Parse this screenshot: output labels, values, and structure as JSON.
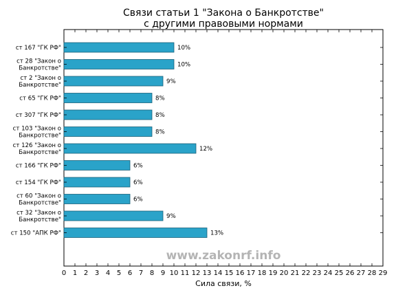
{
  "chart_data": {
    "type": "bar",
    "orientation": "horizontal",
    "title": [
      "Связи статьи 1 \"Закона о Банкротстве\"",
      "с другими правовыми нормами"
    ],
    "xlabel": "Сила связи, %",
    "ylabel": "",
    "xlim": [
      0,
      29
    ],
    "x_ticks": [
      0,
      1,
      2,
      3,
      4,
      5,
      6,
      7,
      8,
      9,
      10,
      11,
      12,
      13,
      14,
      15,
      16,
      17,
      18,
      19,
      20,
      21,
      22,
      23,
      24,
      25,
      26,
      27,
      28,
      29
    ],
    "grid": false,
    "bar_color": "#2aa3c9",
    "categories": [
      [
        "ст 167 \"ГК РФ\""
      ],
      [
        "ст 28 \"Закон о",
        "Банкротстве\""
      ],
      [
        "ст 2 \"Закон о",
        "Банкротстве\""
      ],
      [
        "ст 65 \"ГК РФ\""
      ],
      [
        "ст 307 \"ГК РФ\""
      ],
      [
        "ст 103 \"Закон о",
        "Банкротстве\""
      ],
      [
        "ст 126 \"Закон о",
        "Банкротстве\""
      ],
      [
        "ст 166 \"ГК РФ\""
      ],
      [
        "ст 154 \"ГК РФ\""
      ],
      [
        "ст 60 \"Закон о",
        "Банкротстве\""
      ],
      [
        "ст 32 \"Закон о",
        "Банкротстве\""
      ],
      [
        "ст 150 \"АПК РФ\""
      ]
    ],
    "values": [
      10,
      10,
      9,
      8,
      8,
      8,
      12,
      6,
      6,
      6,
      9,
      13
    ],
    "value_labels": [
      "10%",
      "10%",
      "9%",
      "8%",
      "8%",
      "8%",
      "12%",
      "6%",
      "6%",
      "6%",
      "9%",
      "13%"
    ]
  },
  "watermark": "www.zakonrf.info"
}
